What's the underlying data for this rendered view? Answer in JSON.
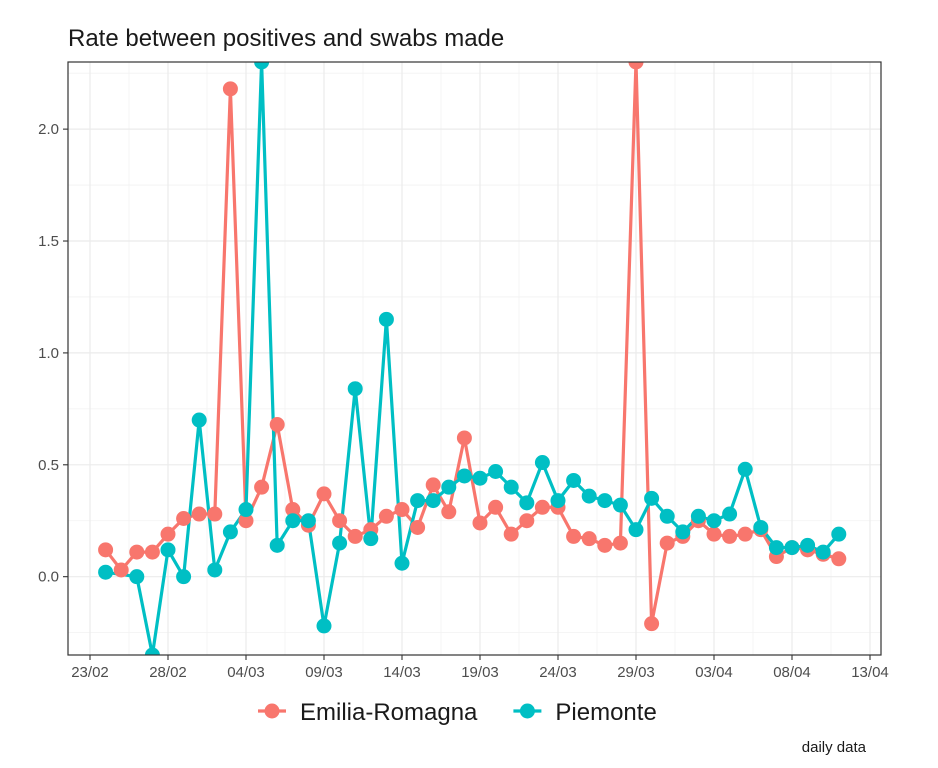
{
  "chart_data": {
    "type": "line",
    "title": "Rate between positives and swabs made",
    "caption": "daily data",
    "xlabel": "",
    "ylabel": "",
    "x_start": "24/02",
    "x_end": "11/04",
    "x_ticks": [
      "23/02",
      "28/02",
      "04/03",
      "09/03",
      "14/03",
      "19/03",
      "24/03",
      "29/03",
      "03/04",
      "08/04",
      "13/04"
    ],
    "y_ticks": [
      "0.0",
      "0.5",
      "1.0",
      "1.5",
      "2.0"
    ],
    "ylim": [
      -0.35,
      2.3
    ],
    "grid": true,
    "legend_position": "bottom",
    "series": [
      {
        "name": "Emilia-Romagna",
        "color": "#F8766D",
        "values": [
          0.12,
          0.03,
          0.11,
          0.11,
          0.19,
          0.26,
          0.28,
          0.28,
          2.18,
          0.25,
          0.4,
          0.68,
          0.3,
          0.23,
          0.37,
          0.25,
          0.18,
          0.21,
          0.27,
          0.3,
          0.22,
          0.41,
          0.29,
          0.62,
          0.24,
          0.31,
          0.19,
          0.25,
          0.31,
          0.31,
          0.18,
          0.17,
          0.14,
          0.15,
          2.3,
          -0.21,
          0.15,
          0.18,
          0.25,
          0.19,
          0.18,
          0.19,
          0.21,
          0.09,
          0.13,
          0.12,
          0.1,
          0.08
        ]
      },
      {
        "name": "Piemonte",
        "color": "#00BFC4",
        "values": [
          0.02,
          null,
          0.0,
          -0.35,
          0.12,
          0.0,
          0.7,
          0.03,
          0.2,
          0.3,
          2.3,
          0.14,
          0.25,
          0.25,
          -0.22,
          0.15,
          0.84,
          0.17,
          1.15,
          0.06,
          0.34,
          0.34,
          0.4,
          0.45,
          0.44,
          0.47,
          0.4,
          0.33,
          0.51,
          0.34,
          0.43,
          0.36,
          0.34,
          0.32,
          0.21,
          0.35,
          0.27,
          0.2,
          0.27,
          0.25,
          0.28,
          0.48,
          0.22,
          0.13,
          0.13,
          0.14,
          0.11,
          0.19
        ]
      }
    ]
  }
}
